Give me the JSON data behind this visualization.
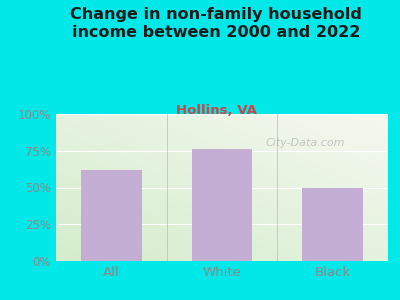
{
  "title": "Change in non-family household\nincome between 2000 and 2022",
  "subtitle": "Hollins, VA",
  "categories": [
    "All",
    "White",
    "Black"
  ],
  "values": [
    62,
    76,
    50
  ],
  "bar_color": "#c4aed4",
  "title_color": "#1a1a1a",
  "subtitle_color": "#cc4444",
  "tick_color": "#888888",
  "background_outer": "#00e8e8",
  "bg_color_bottom_left": "#d4edcc",
  "bg_color_top_right": "#f5f8f0",
  "yticks": [
    0,
    25,
    50,
    75,
    100
  ],
  "ytick_labels": [
    "0%",
    "25%",
    "50%",
    "75%",
    "100%"
  ],
  "ylim": [
    0,
    100
  ],
  "watermark": "City-Data.com",
  "title_fontsize": 11.5,
  "subtitle_fontsize": 9.5
}
